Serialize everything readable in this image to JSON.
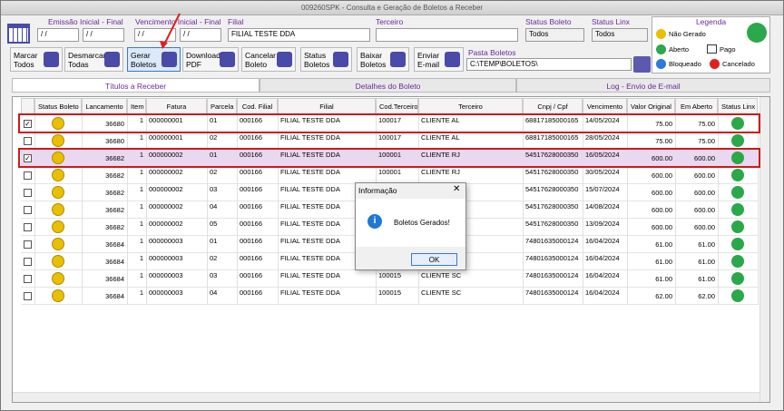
{
  "window": {
    "title": "009260SPK - Consulta e Geração de Boletos a Receber"
  },
  "filters": [
    {
      "label": "Emissão Inicial - Final",
      "values": [
        "/ /",
        "/ /"
      ]
    },
    {
      "label": "Vencimento Inicial - Final",
      "values": [
        "/ /",
        "/ /"
      ]
    },
    {
      "label": "Filial",
      "values": [
        "FILIAL TESTE DDA"
      ]
    },
    {
      "label": "Terceiro",
      "values": []
    },
    {
      "label": "Status Boleto",
      "values": [
        "Todos"
      ]
    },
    {
      "label": "Status Linx",
      "values": [
        "Todos"
      ]
    }
  ],
  "legend": {
    "title": "Legenda",
    "items": [
      "Não Gerado",
      "Aberto",
      "Pago",
      "Bloqueado",
      "Cancelado"
    ]
  },
  "toolbar": [
    [
      "Marcar",
      "Todos"
    ],
    [
      "Desmarcar",
      "Todas"
    ],
    [
      "Gerar",
      "Boletos"
    ],
    [
      "Download",
      "PDF"
    ],
    [
      "Cancelar",
      "Boleto"
    ],
    [
      "Status",
      "Boletos"
    ],
    [
      "Baixar",
      "Boletos"
    ],
    [
      "Enviar",
      "E-mail"
    ]
  ],
  "folder": {
    "label": "Pasta Boletos",
    "value": "C:\\TEMP\\BOLETOS\\"
  },
  "tabs": [
    "Títulos a Receber",
    "Detalhes do Boleto",
    "Log - Envio de E-mail"
  ],
  "table": {
    "columns": [
      "Status Boleto",
      "Lancamento",
      "Item",
      "Fatura",
      "Parcela",
      "Cod. Filial",
      "Filial",
      "Cod.Terceiro",
      "Terceiro",
      "Cnpj / Cpf",
      "Vencimento",
      "Valor Original",
      "Em Aberto",
      "Status Linx"
    ],
    "rows": [
      {
        "checked": true,
        "lancamento": "36680",
        "item": "1",
        "fatura": "000000001",
        "parcela": "01",
        "cod_filial": "000166",
        "filial": "FILIAL TESTE DDA",
        "cod_terceiro": "100017",
        "terceiro": "CLIENTE AL",
        "cnpj": "68817185000165",
        "vencimento": "14/05/2024",
        "valor": "75.00",
        "aberto": "75.00"
      },
      {
        "checked": false,
        "lancamento": "36680",
        "item": "1",
        "fatura": "000000001",
        "parcela": "02",
        "cod_filial": "000166",
        "filial": "FILIAL TESTE DDA",
        "cod_terceiro": "100017",
        "terceiro": "CLIENTE AL",
        "cnpj": "68817185000165",
        "vencimento": "28/05/2024",
        "valor": "75.00",
        "aberto": "75.00"
      },
      {
        "checked": true,
        "lancamento": "36682",
        "item": "1",
        "fatura": "000000002",
        "parcela": "01",
        "cod_filial": "000166",
        "filial": "FILIAL TESTE DDA",
        "cod_terceiro": "100001",
        "terceiro": "CLIENTE RJ",
        "cnpj": "54517628000350",
        "vencimento": "16/05/2024",
        "valor": "600.00",
        "aberto": "600.00"
      },
      {
        "checked": false,
        "lancamento": "36682",
        "item": "1",
        "fatura": "000000002",
        "parcela": "02",
        "cod_filial": "000166",
        "filial": "FILIAL TESTE DDA",
        "cod_terceiro": "100001",
        "terceiro": "CLIENTE RJ",
        "cnpj": "54517628000350",
        "vencimento": "30/05/2024",
        "valor": "600.00",
        "aberto": "600.00"
      },
      {
        "checked": false,
        "lancamento": "36682",
        "item": "1",
        "fatura": "000000002",
        "parcela": "03",
        "cod_filial": "000166",
        "filial": "FILIAL TESTE DDA",
        "cnpj": "54517628000350",
        "vencimento": "15/07/2024",
        "valor": "600.00",
        "aberto": "600.00"
      },
      {
        "checked": false,
        "lancamento": "36682",
        "item": "1",
        "fatura": "000000002",
        "parcela": "04",
        "cod_filial": "000166",
        "filial": "FILIAL TESTE DDA",
        "cnpj": "54517628000350",
        "vencimento": "14/08/2024",
        "valor": "600.00",
        "aberto": "600.00"
      },
      {
        "checked": false,
        "lancamento": "36682",
        "item": "1",
        "fatura": "000000002",
        "parcela": "05",
        "cod_filial": "000166",
        "filial": "FILIAL TESTE DDA",
        "cnpj": "54517628000350",
        "vencimento": "13/09/2024",
        "valor": "600.00",
        "aberto": "600.00"
      },
      {
        "checked": false,
        "lancamento": "36684",
        "item": "1",
        "fatura": "000000003",
        "parcela": "01",
        "cod_filial": "000166",
        "filial": "FILIAL TESTE DDA",
        "cnpj": "74801635000124",
        "vencimento": "16/04/2024",
        "valor": "61.00",
        "aberto": "61.00"
      },
      {
        "checked": false,
        "lancamento": "36684",
        "item": "1",
        "fatura": "000000003",
        "parcela": "02",
        "cod_filial": "000166",
        "filial": "FILIAL TESTE DDA",
        "cnpj": "74801635000124",
        "vencimento": "16/04/2024",
        "valor": "61.00",
        "aberto": "61.00"
      },
      {
        "checked": false,
        "lancamento": "36684",
        "item": "1",
        "fatura": "000000003",
        "parcela": "03",
        "cod_filial": "000166",
        "filial": "FILIAL TESTE DDA",
        "cod_terceiro": "100015",
        "terceiro": "CLIENTE SC",
        "cnpj": "74801635000124",
        "vencimento": "16/04/2024",
        "valor": "61.00",
        "aberto": "61.00"
      },
      {
        "checked": false,
        "lancamento": "36684",
        "item": "1",
        "fatura": "000000003",
        "parcela": "04",
        "cod_filial": "000166",
        "filial": "FILIAL TESTE DDA",
        "cod_terceiro": "100015",
        "terceiro": "CLIENTE SC",
        "cnpj": "74801635000124",
        "vencimento": "16/04/2024",
        "valor": "62.00",
        "aberto": "62.00"
      }
    ]
  },
  "dialog": {
    "title": "Informação",
    "message": "Boletos Gerados!",
    "button": "OK"
  }
}
